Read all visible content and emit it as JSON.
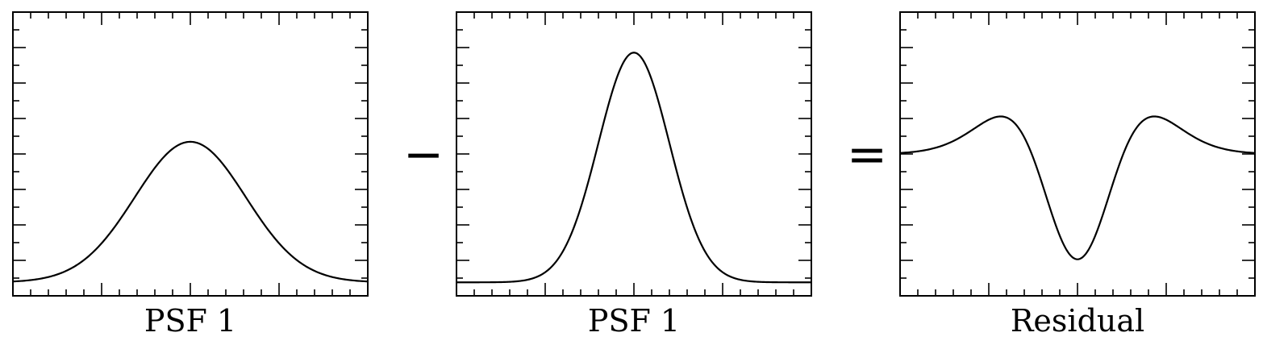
{
  "chart_data": [
    {
      "type": "line",
      "xlabel": "PSF 1",
      "xlim": [
        -4,
        4
      ],
      "ylim": [
        -0.05,
        1.0
      ],
      "series": [
        {
          "function": "gaussian",
          "amplitude": 0.52,
          "sigma": 1.25,
          "center": 0,
          "offset": 0
        }
      ]
    },
    {
      "type": "line",
      "xlabel": "PSF 1",
      "xlim": [
        -4,
        4
      ],
      "ylim": [
        -0.05,
        1.0
      ],
      "series": [
        {
          "function": "gaussian",
          "amplitude": 0.85,
          "sigma": 0.8,
          "center": 0,
          "offset": 0
        }
      ]
    },
    {
      "type": "line",
      "xlabel": "Residual",
      "xlim": [
        -4,
        4
      ],
      "ylim": [
        -0.6,
        0.6
      ],
      "series": [
        {
          "function": "gaussian_difference",
          "derived_from": [
            "PSF 1",
            "PSF 1"
          ]
        }
      ]
    }
  ],
  "operators": [
    "−",
    "="
  ]
}
